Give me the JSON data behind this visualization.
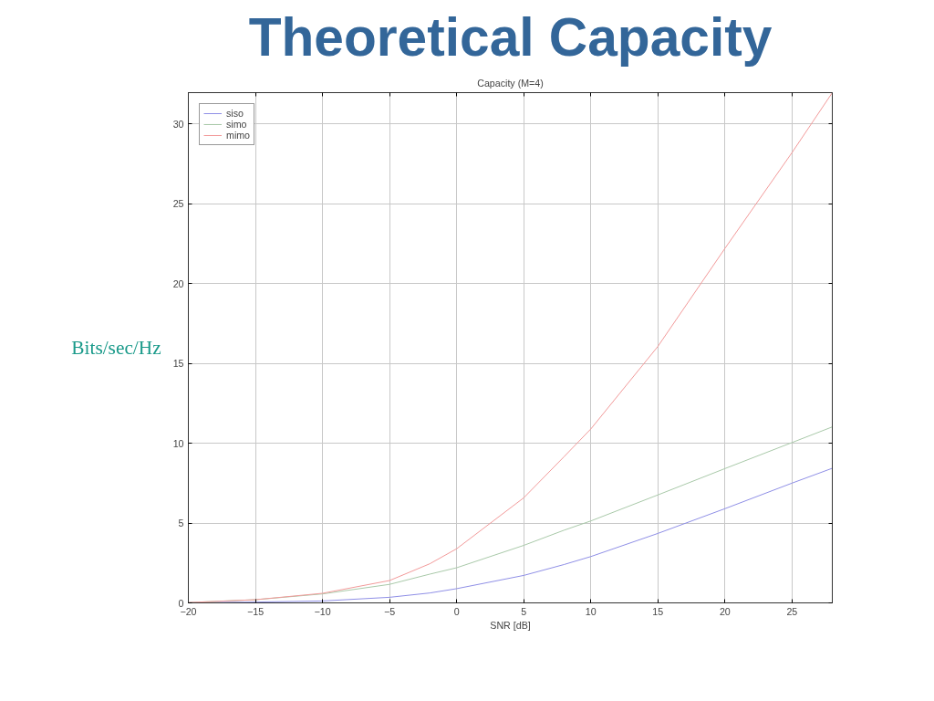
{
  "chart_data": {
    "type": "line",
    "title": "Theoretical Capacity",
    "subtitle": "Capacity (M=4)",
    "xlabel": "SNR [dB]",
    "ylabel": "Bits/sec/Hz",
    "x": [
      -20,
      -15,
      -10,
      -5,
      -2,
      0,
      5,
      8,
      10,
      15,
      20,
      25,
      28
    ],
    "series": [
      {
        "name": "siso",
        "color": "#8f8fe6",
        "values": [
          0.01,
          0.05,
          0.12,
          0.35,
          0.62,
          0.89,
          1.72,
          2.4,
          2.9,
          4.35,
          5.9,
          7.5,
          8.43
        ]
      },
      {
        "name": "simo",
        "color": "#a9c9a9",
        "values": [
          0.02,
          0.2,
          0.56,
          1.16,
          1.8,
          2.2,
          3.6,
          4.55,
          5.13,
          6.76,
          8.41,
          10.04,
          11.02
        ]
      },
      {
        "name": "mimo",
        "color": "#f29a9a",
        "values": [
          0.02,
          0.2,
          0.6,
          1.4,
          2.45,
          3.39,
          6.58,
          9.15,
          10.89,
          16.06,
          22.2,
          28.2,
          31.95
        ]
      }
    ],
    "xlim": [
      -20,
      28
    ],
    "ylim": [
      0,
      31.95
    ],
    "xticks": [
      -20,
      -15,
      -10,
      -5,
      0,
      5,
      10,
      15,
      20,
      25
    ],
    "yticks": [
      0,
      5,
      10,
      15,
      20,
      25,
      30
    ],
    "grid": true,
    "legend": "top left",
    "line_style": "solid",
    "marker": "none"
  }
}
